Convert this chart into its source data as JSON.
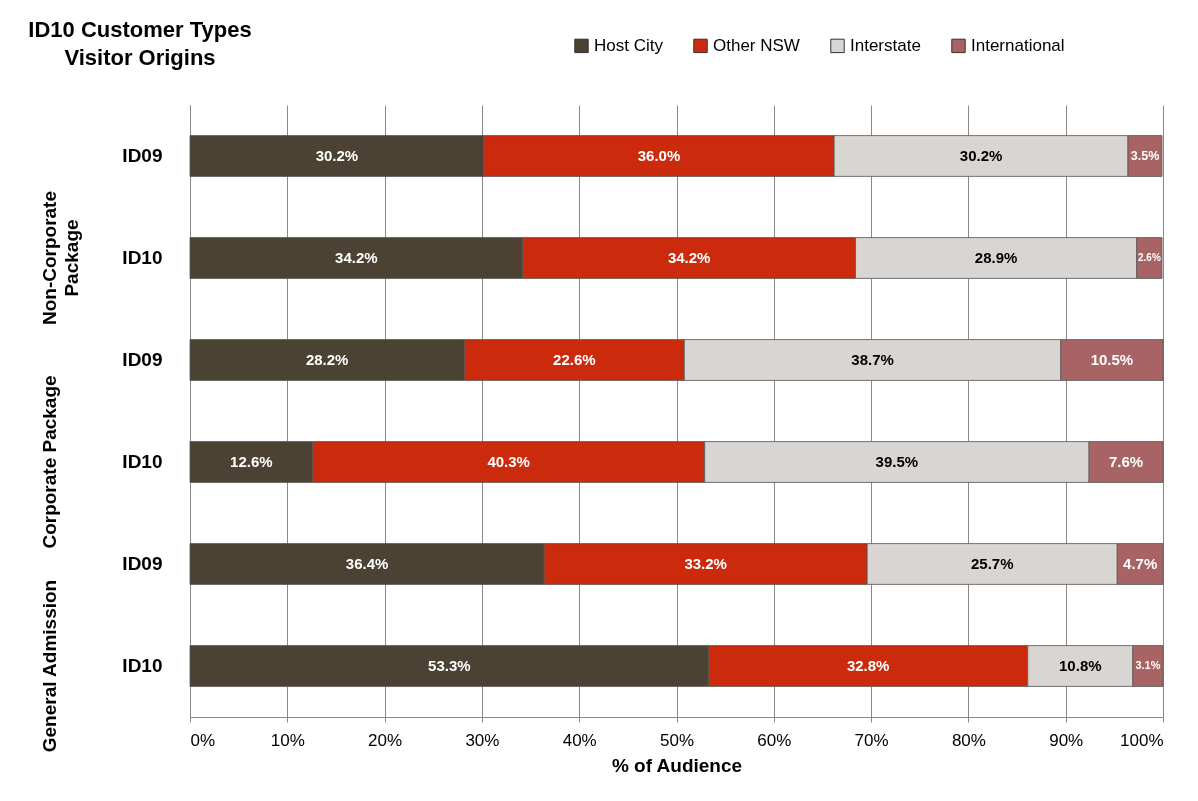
{
  "chart_data": {
    "type": "bar",
    "orientation": "horizontal",
    "stacked": true,
    "title": "ID10 Customer Types",
    "subtitle": "Visitor Origins",
    "xlabel": "% of Audience",
    "categories": [
      "ID09",
      "ID10",
      "ID09",
      "ID10",
      "ID09",
      "ID10"
    ],
    "annotations": [
      "Non-Corporate Package",
      "Corporate Package",
      "General Admission"
    ],
    "series": [
      {
        "name": "Host City",
        "color": "#4b4233",
        "values": [
          30.2,
          34.2,
          28.2,
          12.6,
          36.4,
          53.3
        ],
        "value_labels": [
          "30.2%",
          "34.2%",
          "28.2%",
          "12.6%",
          "36.4%",
          "53.3%"
        ]
      },
      {
        "name": "Other NSW",
        "color": "#cc2a0c",
        "values": [
          36.0,
          34.2,
          22.6,
          40.3,
          33.2,
          32.8
        ],
        "value_labels": [
          "36.0%",
          "34.2%",
          "22.6%",
          "40.3%",
          "33.2%",
          "32.8%"
        ]
      },
      {
        "name": "Interstate",
        "color": "#d9d5d3",
        "values": [
          30.2,
          28.9,
          38.7,
          39.5,
          25.7,
          10.8
        ],
        "value_labels": [
          "30.2%",
          "28.9%",
          "38.7%",
          "39.5%",
          "25.7%",
          "10.8%"
        ]
      },
      {
        "name": "International",
        "color": "#a86464",
        "values": [
          3.5,
          2.6,
          10.5,
          7.6,
          4.7,
          3.1
        ],
        "value_labels": [
          "3.5%",
          "2.6%",
          "10.5%",
          "7.6%",
          "4.7%",
          "3.1%"
        ]
      }
    ],
    "xlim": [
      0,
      100
    ],
    "xticks": [
      {
        "value": 0,
        "label": "0%"
      },
      {
        "value": 10,
        "label": "10%"
      },
      {
        "value": 20,
        "label": "20%"
      },
      {
        "value": 30,
        "label": "30%"
      },
      {
        "value": 40,
        "label": "40%"
      },
      {
        "value": 50,
        "label": "50%"
      },
      {
        "value": 60,
        "label": "60%"
      },
      {
        "value": 70,
        "label": "70%"
      },
      {
        "value": 80,
        "label": "80%"
      },
      {
        "value": 90,
        "label": "90%"
      },
      {
        "value": 100,
        "label": "100%"
      }
    ],
    "grid": "x",
    "legend": "top right"
  }
}
